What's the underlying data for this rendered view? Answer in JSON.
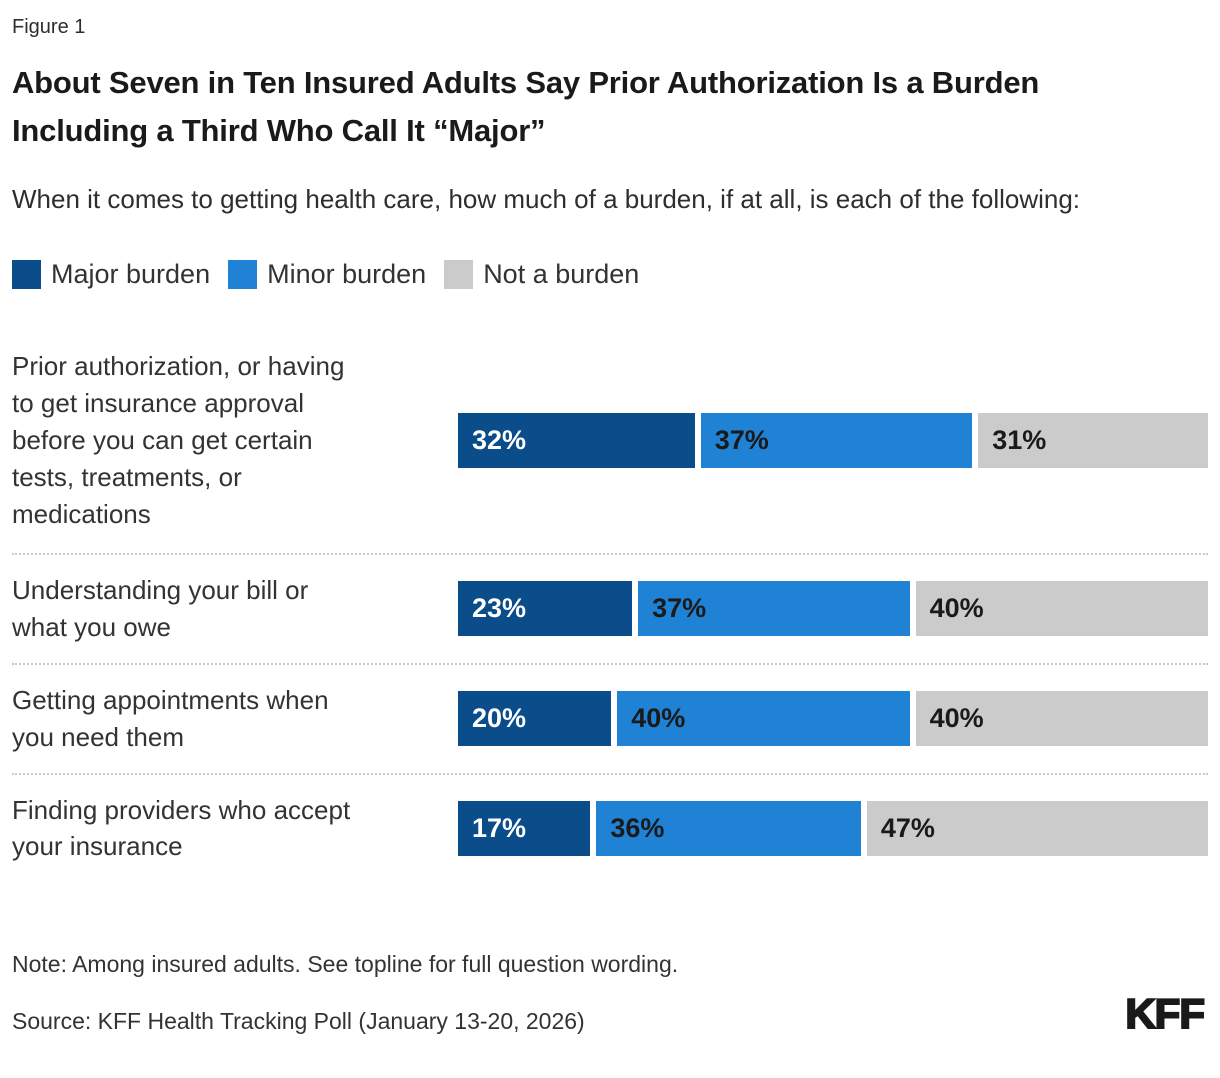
{
  "figure_label": "Figure 1",
  "title": "About Seven in Ten Insured Adults Say Prior Authorization Is a Burden Including a Third Who Call It “Major”",
  "subtitle": "When it comes to getting health care, how much of a burden, if at all, is each of the following:",
  "chart_data": {
    "type": "bar",
    "orientation": "horizontal",
    "stacked": true,
    "value_unit": "percent",
    "xlim": [
      0,
      100
    ],
    "grid": false,
    "legend_position": "top",
    "categories": [
      "Prior authorization, or having\nto get insurance approval\nbefore you can get certain\ntests, treatments, or\nmedications",
      "Understanding your bill or\nwhat you owe",
      "Getting appointments when\nyou need them",
      "Finding providers who accept\nyour insurance"
    ],
    "series": [
      {
        "name": "Major burden",
        "color": "#0B4C8A",
        "text_style": "light",
        "values": [
          32,
          23,
          20,
          17
        ]
      },
      {
        "name": "Minor burden",
        "color": "#1F82D4",
        "text_style": "dark",
        "values": [
          37,
          37,
          40,
          36
        ]
      },
      {
        "name": "Not a burden",
        "color": "#CBCBCB",
        "text_style": "dark",
        "values": [
          31,
          40,
          40,
          47
        ]
      }
    ]
  },
  "note": "Note: Among insured adults. See topline for full question wording.",
  "source": "Source: KFF Health Tracking Poll (January 13-20, 2026)",
  "logo_text": "KFF"
}
